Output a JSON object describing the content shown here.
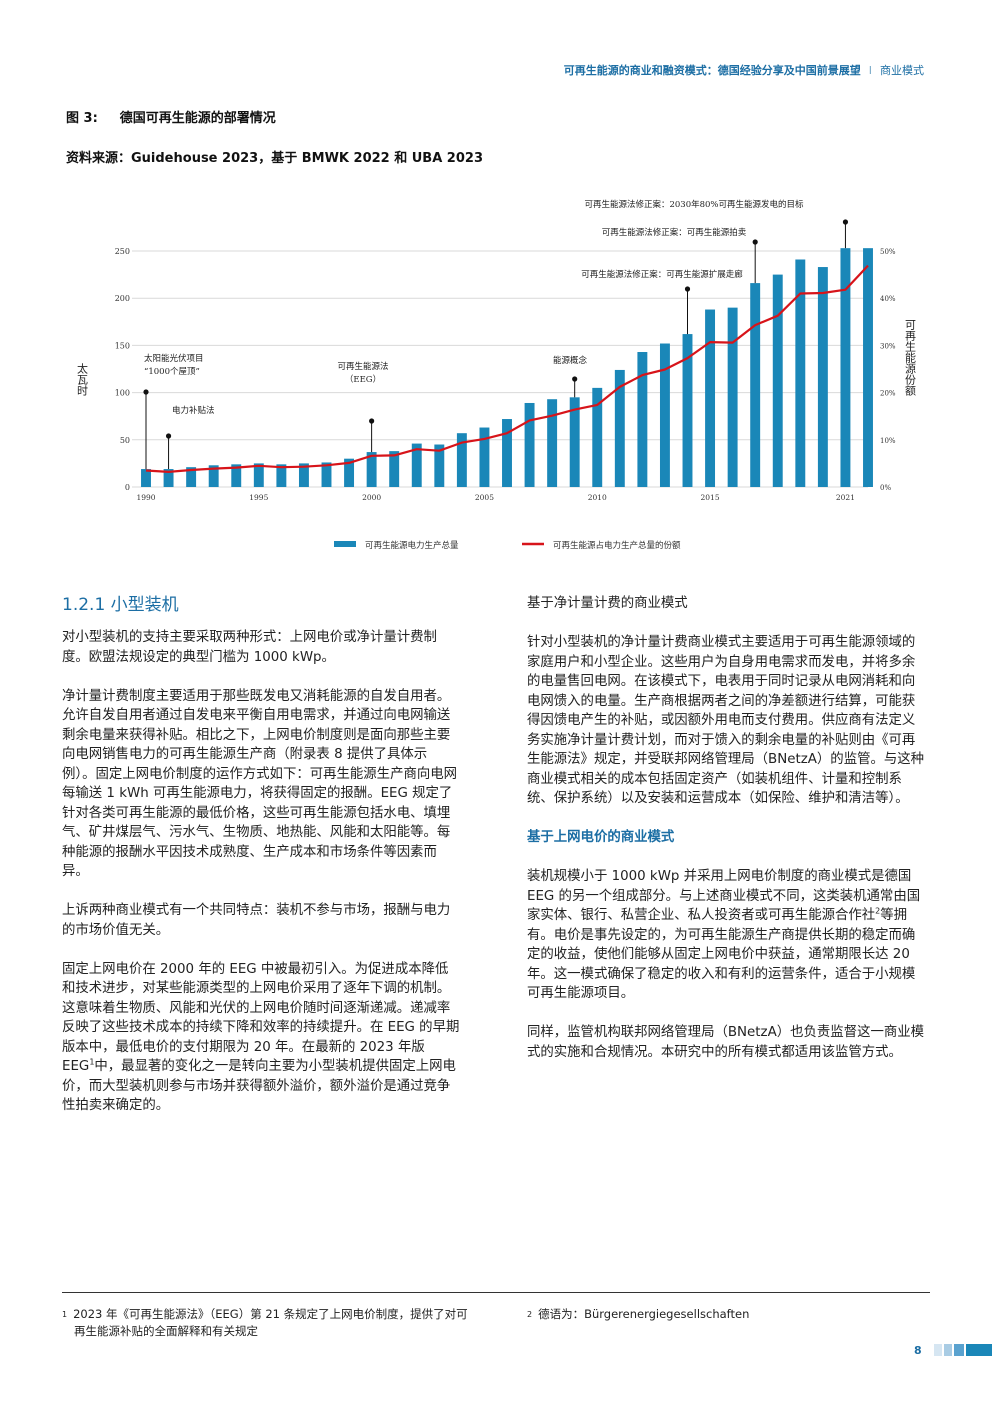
{
  "header": {
    "doc_title": "可再生能源的商业和融资模式：德国经验分享及中国前景展望",
    "separator": "I",
    "section": "商业模式"
  },
  "figure": {
    "number": "图 3:",
    "title": "德国可再生能源的部署情况",
    "source": "资料来源：Guidehouse 2023，基于 BMWK 2022 和 UBA 2023"
  },
  "chart_data": {
    "type": "bar",
    "title": "",
    "ylabel": "太瓦时",
    "y2label": "可再生能源份额",
    "ylim": [
      0,
      250
    ],
    "y2lim": [
      0,
      0.5
    ],
    "yticks": [
      "0",
      "50",
      "100",
      "150",
      "200",
      "250"
    ],
    "y2ticks": [
      "0%",
      "10%",
      "20%",
      "30%",
      "40%",
      "50%"
    ],
    "xticks": [
      "1990",
      "1995",
      "2000",
      "2005",
      "2010",
      "2015",
      "2021"
    ],
    "grid": true,
    "legend_position": "bottom",
    "colors": {
      "bar": "#1a87b8",
      "line": "#d7141a",
      "grid": "#d9d9d9"
    },
    "x": [
      1990,
      1991,
      1992,
      1993,
      1994,
      1995,
      1996,
      1997,
      1998,
      1999,
      2000,
      2001,
      2002,
      2003,
      2004,
      2005,
      2006,
      2007,
      2008,
      2009,
      2010,
      2011,
      2012,
      2013,
      2014,
      2015,
      2016,
      2017,
      2018,
      2019,
      2020,
      2021,
      2022
    ],
    "series": [
      {
        "name": "可再生能源电力生产总量",
        "kind": "bar",
        "values": [
          19,
          19,
          21,
          23,
          24,
          25,
          24,
          25,
          26,
          30,
          37,
          38,
          46,
          45,
          57,
          63,
          72,
          89,
          93,
          95,
          105,
          124,
          143,
          152,
          162,
          188,
          190,
          216,
          225,
          241,
          233,
          253,
          253
        ]
      },
      {
        "name": "可再生能源占电力生产总量的份额",
        "kind": "line",
        "values": [
          0.035,
          0.032,
          0.036,
          0.039,
          0.041,
          0.045,
          0.042,
          0.043,
          0.046,
          0.051,
          0.066,
          0.067,
          0.08,
          0.077,
          0.094,
          0.102,
          0.114,
          0.141,
          0.151,
          0.164,
          0.174,
          0.212,
          0.237,
          0.249,
          0.273,
          0.307,
          0.306,
          0.343,
          0.363,
          0.41,
          0.411,
          0.418,
          0.469
        ]
      }
    ],
    "annotations": [
      {
        "year": 1990,
        "label_lines": [
          "太阳能光伏项目",
          "“1000个屋顶”"
        ]
      },
      {
        "year": 1991,
        "label_lines": [
          "电力补贴法"
        ]
      },
      {
        "year": 2000,
        "label_lines": [
          "可再生能源法",
          "（EEG）"
        ]
      },
      {
        "year": 2009,
        "label_lines": [
          "能源概念"
        ]
      },
      {
        "year": 2014,
        "label_lines": [
          "可再生能源法修正案：可再生能源扩展走廊"
        ]
      },
      {
        "year": 2017,
        "label_lines": [
          "可再生能源法修正案：可再生能源拍卖"
        ]
      },
      {
        "year": 2021,
        "label_lines": [
          "可再生能源法修正案：2030年80%可再生能源发电的目标"
        ]
      }
    ]
  },
  "left_column": {
    "heading": "1.2.1  小型装机",
    "p1": "对小型装机的支持主要采取两种形式：上网电价或净计量计费制度。欧盟法规设定的典型门槛为 1000 kWp。",
    "p2": "净计量计费制度主要适用于那些既发电又消耗能源的自发自用者。允许自发自用者通过自发电来平衡自用电需求，并通过向电网输送剩余电量来获得补贴。相比之下，上网电价制度则是面向那些主要向电网销售电力的可再生能源生产商（附录表 8 提供了具体示例）。固定上网电价制度的运作方式如下：可再生能源生产商向电网每输送 1 kWh 可再生能源电力，将获得固定的报酬。EEG 规定了针对各类可再生能源的最低价格，这些可再生能源包括水电、填埋气、矿井煤层气、污水气、生物质、地热能、风能和太阳能等。每种能源的报酬水平因技术成熟度、生产成本和市场条件等因素而异。",
    "p3": "上诉两种商业模式有一个共同特点：装机不参与市场，报酬与电力的市场价值无关。",
    "p4a": "固定上网电价在 2000 年的 EEG 中被最初引入。为促进成本降低和技术进步，对某些能源类型的上网电价采用了逐年下调的机制。这意味着生物质、风能和光伏的上网电价随时间逐渐递减。递减率反映了这些技术成本的持续下降和效率的持续提升。在 EEG 的早期版本中，最低电价的支付期限为 20 年。在最新的 2023 年版 EEG",
    "p4_sup": "1",
    "p4b": "中，最显著的变化之一是转向主要为小型装机提供固定上网电价，而大型装机则参与市场并获得额外溢价，额外溢价是通过竞争性拍卖来确定的。"
  },
  "right_column": {
    "sub1": "基于净计量计费的商业模式",
    "p1": "针对小型装机的净计量计费商业模式主要适用于可再生能源领域的家庭用户和小型企业。这些用户为自身用电需求而发电，并将多余的电量售回电网。在该模式下，电表用于同时记录从电网消耗和向电网馈入的电量。生产商根据两者之间的净差额进行结算，可能获得因馈电产生的补贴，或因额外用电而支付费用。供应商有法定义务实施净计量计费计划，而对于馈入的剩余电量的补贴则由《可再生能源法》规定，并受联邦网络管理局（BNetzA）的监管。与这种商业模式相关的成本包括固定资产（如装机组件、计量和控制系统、保护系统）以及安装和运营成本（如保险、维护和清洁等）。",
    "sub2": "基于上网电价的商业模式",
    "p2a": "装机规模小于 1000 kWp 并采用上网电价制度的商业模式是德国 EEG 的另一个组成部分。与上述商业模式不同，这类装机通常由国家实体、银行、私营企业、私人投资者或可再生能源合作社",
    "p2_sup": "2",
    "p2b": "等拥有。电价是事先设定的，为可再生能源生产商提供长期的稳定而确定的收益，使他们能够从固定上网电价中获益，通常期限长达 20 年。这一模式确保了稳定的收入和有利的运营条件，适合于小规模可再生能源项目。",
    "p3": "同样，监管机构联邦网络管理局（BNetzA）也负责监督这一商业模式的实施和合规情况。本研究中的所有模式都适用该监管方式。"
  },
  "footnotes": {
    "f1_mark": "1",
    "f1_text": "2023 年《可再生能源法》（EEG）第 21 条规定了上网电价制度，提供了对可再生能源补贴的全面解释和有关规定",
    "f2_mark": "2",
    "f2_text": "德语为：Bürgerenergiegesellschaften"
  },
  "page_number": "8"
}
